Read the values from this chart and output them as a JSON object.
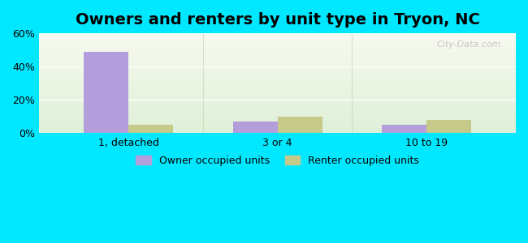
{
  "title": "Owners and renters by unit type in Tryon, NC",
  "categories": [
    "1, detached",
    "3 or 4",
    "10 to 19"
  ],
  "owner_values": [
    49,
    7,
    5
  ],
  "renter_values": [
    5,
    10,
    8
  ],
  "owner_color": "#b39ddb",
  "renter_color": "#c5c98a",
  "background_color": "#00e8ff",
  "plot_bg_left": "#eef5e0",
  "plot_bg_right": "#f5f8ee",
  "ylim": [
    0,
    60
  ],
  "yticks": [
    0,
    20,
    40,
    60
  ],
  "ytick_labels": [
    "0%",
    "20%",
    "40%",
    "60%"
  ],
  "bar_width": 0.3,
  "title_fontsize": 14,
  "legend_labels": [
    "Owner occupied units",
    "Renter occupied units"
  ],
  "watermark": "City-Data.com"
}
